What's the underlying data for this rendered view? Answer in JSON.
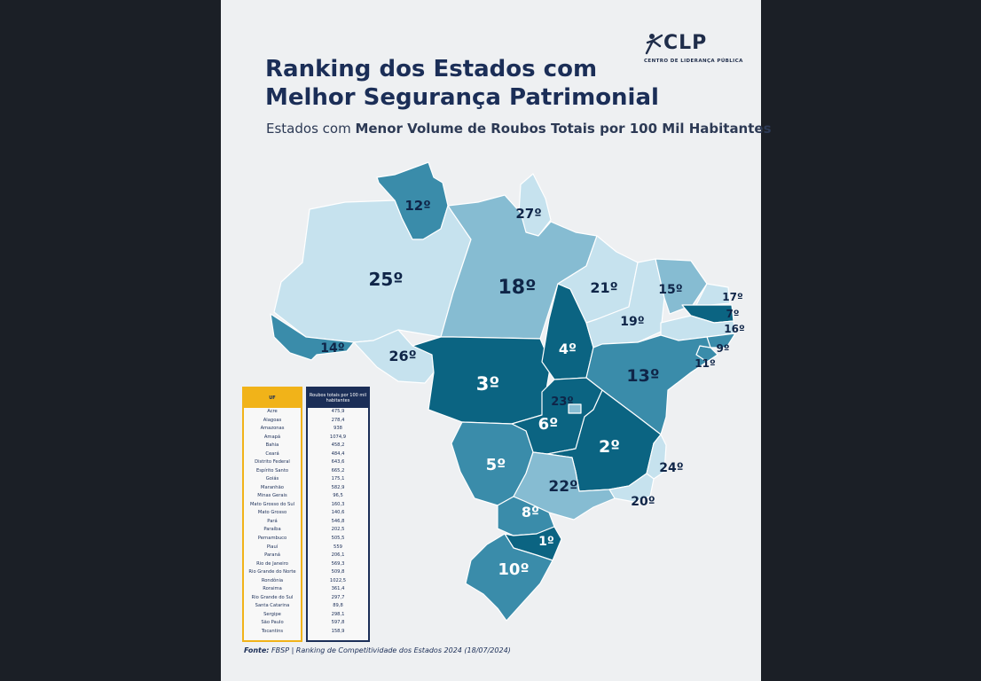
{
  "logo": {
    "name": "CLP",
    "subtitle": "CENTRO DE LIDERANÇA PÚBLICA"
  },
  "title_line1": "Ranking dos Estados com",
  "title_line2": "Melhor Segurança Patrimonial",
  "subtitle_prefix": "Estados com ",
  "subtitle_bold": "Menor Volume de Roubos Totais por 100 Mil Habitantes",
  "colors": {
    "dark": "#0b6482",
    "mid": "#3a8caa",
    "light": "#86bcd2",
    "pale": "#c6e2ee",
    "navy": "#1b2e57",
    "gold": "#f1b319"
  },
  "ranks": {
    "rr": "12º",
    "ap": "27º",
    "am": "25º",
    "pa": "18º",
    "ac": "14º",
    "ro": "26º",
    "mt": "3º",
    "to": "4º",
    "ma": "21º",
    "pi": "19º",
    "ce": "15º",
    "rn": "17º",
    "pb": "7º",
    "pe": "16º",
    "al": "9º",
    "se": "11º",
    "ba": "13º",
    "df": "23º",
    "go": "6º",
    "mg": "2º",
    "es": "24º",
    "rj": "20º",
    "sp": "22º",
    "ms": "5º",
    "pr": "8º",
    "sc": "1º",
    "rs": "10º"
  },
  "table": {
    "header_uf": "UF",
    "header_value": "Roubos totais por 100 mil habitantes",
    "rows": [
      {
        "uf": "Acre",
        "value": "475,9"
      },
      {
        "uf": "Alagoas",
        "value": "278,4"
      },
      {
        "uf": "Amazonas",
        "value": "938"
      },
      {
        "uf": "Amapá",
        "value": "1074,9"
      },
      {
        "uf": "Bahia",
        "value": "458,2"
      },
      {
        "uf": "Ceará",
        "value": "484,4"
      },
      {
        "uf": "Distrito Federal",
        "value": "643,6"
      },
      {
        "uf": "Espírito Santo",
        "value": "665,2"
      },
      {
        "uf": "Goiás",
        "value": "175,1"
      },
      {
        "uf": "Maranhão",
        "value": "582,9"
      },
      {
        "uf": "Minas Gerais",
        "value": "96,5"
      },
      {
        "uf": "Mato Grosso do Sul",
        "value": "160,3"
      },
      {
        "uf": "Mato Grosso",
        "value": "140,6"
      },
      {
        "uf": "Pará",
        "value": "546,8"
      },
      {
        "uf": "Paraíba",
        "value": "202,5"
      },
      {
        "uf": "Pernambuco",
        "value": "505,5"
      },
      {
        "uf": "Piauí",
        "value": "559"
      },
      {
        "uf": "Paraná",
        "value": "206,1"
      },
      {
        "uf": "Rio de Janeiro",
        "value": "569,3"
      },
      {
        "uf": "Rio Grande do Norte",
        "value": "509,8"
      },
      {
        "uf": "Rondônia",
        "value": "1022,5"
      },
      {
        "uf": "Roraima",
        "value": "361,4"
      },
      {
        "uf": "Rio Grande do Sul",
        "value": "297,7"
      },
      {
        "uf": "Santa Catarina",
        "value": "89,8"
      },
      {
        "uf": "Sergipe",
        "value": "298,1"
      },
      {
        "uf": "São Paulo",
        "value": "597,8"
      },
      {
        "uf": "Tocantins",
        "value": "158,9"
      }
    ]
  },
  "source_label": "Fonte:",
  "source_text": " FBSP | Ranking de Competitividade dos Estados 2024 (18/07/2024)"
}
